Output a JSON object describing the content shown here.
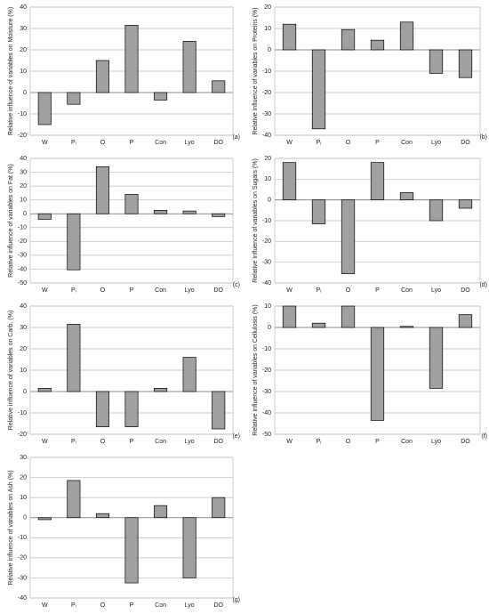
{
  "chart_data": [
    {
      "type": "bar",
      "ylabel": "Relative influence of variables on Moisture (%)",
      "label": "(a)",
      "categories": [
        "W",
        "Pᵢ",
        "O",
        "P",
        "Con",
        "Lyo",
        "DO"
      ],
      "values": [
        -15,
        -5.5,
        15,
        31.5,
        -3.5,
        24,
        5.5
      ],
      "color": "#a0a0a0",
      "ylim": [
        -20,
        40
      ],
      "yticks": [
        -20,
        -10,
        0,
        10,
        20,
        30,
        40
      ],
      "grid": true
    },
    {
      "type": "bar",
      "ylabel": "Relative influence of variables on Proteins (%)",
      "label": "(b)",
      "categories": [
        "W",
        "Pᵢ",
        "O",
        "P",
        "Con",
        "Lyo",
        "DO"
      ],
      "values": [
        12,
        -37,
        9.5,
        4.5,
        13,
        -11,
        -13
      ],
      "color": "#a0a0a0",
      "ylim": [
        -40,
        20
      ],
      "yticks": [
        -40,
        -30,
        -20,
        -10,
        0,
        10,
        20
      ],
      "grid": true
    },
    {
      "type": "bar",
      "ylabel": "Relative influence of variables on Fat (%)",
      "label": "(c)",
      "categories": [
        "W",
        "Pᵢ",
        "O",
        "P",
        "Con",
        "Lyo",
        "DO"
      ],
      "values": [
        -4,
        -40.5,
        34,
        14,
        2.5,
        2,
        -2
      ],
      "color": "#a0a0a0",
      "ylim": [
        -50,
        40
      ],
      "yticks": [
        -50,
        -40,
        -30,
        -20,
        -10,
        0,
        10,
        20,
        30,
        40
      ],
      "grid": true
    },
    {
      "type": "bar",
      "ylabel": "Relative influence of variables on Sugars (%)",
      "label": "(d)",
      "categories": [
        "W",
        "Pᵢ",
        "O",
        "P",
        "Con",
        "Lyo",
        "DO"
      ],
      "values": [
        18,
        -11.5,
        -35.5,
        18,
        3.5,
        -10,
        -4
      ],
      "color": "#a0a0a0",
      "ylim": [
        -40,
        20
      ],
      "yticks": [
        -40,
        -30,
        -20,
        -10,
        0,
        10,
        20
      ],
      "grid": true
    },
    {
      "type": "bar",
      "ylabel": "Relative influence of variables on Carb. (%)",
      "label": "(e)",
      "categories": [
        "W",
        "Pᵢ",
        "O",
        "P",
        "Con",
        "Lyo",
        "DO"
      ],
      "values": [
        1.5,
        31.5,
        -16.5,
        -16.5,
        1.5,
        16,
        -17.5
      ],
      "color": "#a0a0a0",
      "ylim": [
        -20,
        40
      ],
      "yticks": [
        -20,
        -10,
        0,
        10,
        20,
        30,
        40
      ],
      "grid": true
    },
    {
      "type": "bar",
      "ylabel": "Relative influence of variables on Cellulosis (%)",
      "label": "(f)",
      "categories": [
        "W",
        "Pᵢ",
        "O",
        "P",
        "Con",
        "Lyo",
        "DO"
      ],
      "values": [
        10,
        2,
        10,
        -43.5,
        0.5,
        -28.5,
        6
      ],
      "color": "#a0a0a0",
      "ylim": [
        -50,
        10
      ],
      "yticks": [
        -50,
        -40,
        -30,
        -20,
        -10,
        0,
        10
      ],
      "grid": true
    },
    {
      "type": "bar",
      "ylabel": "Relative influence of variables on Ash (%)",
      "label": "(g)",
      "categories": [
        "W",
        "Pᵢ",
        "O",
        "P",
        "Con",
        "Lyo",
        "DO"
      ],
      "values": [
        -1,
        18.5,
        2,
        -32.5,
        6,
        -30,
        10
      ],
      "color": "#a0a0a0",
      "ylim": [
        -40,
        30
      ],
      "yticks": [
        -40,
        -30,
        -20,
        -10,
        0,
        10,
        20,
        30
      ],
      "grid": true
    }
  ]
}
